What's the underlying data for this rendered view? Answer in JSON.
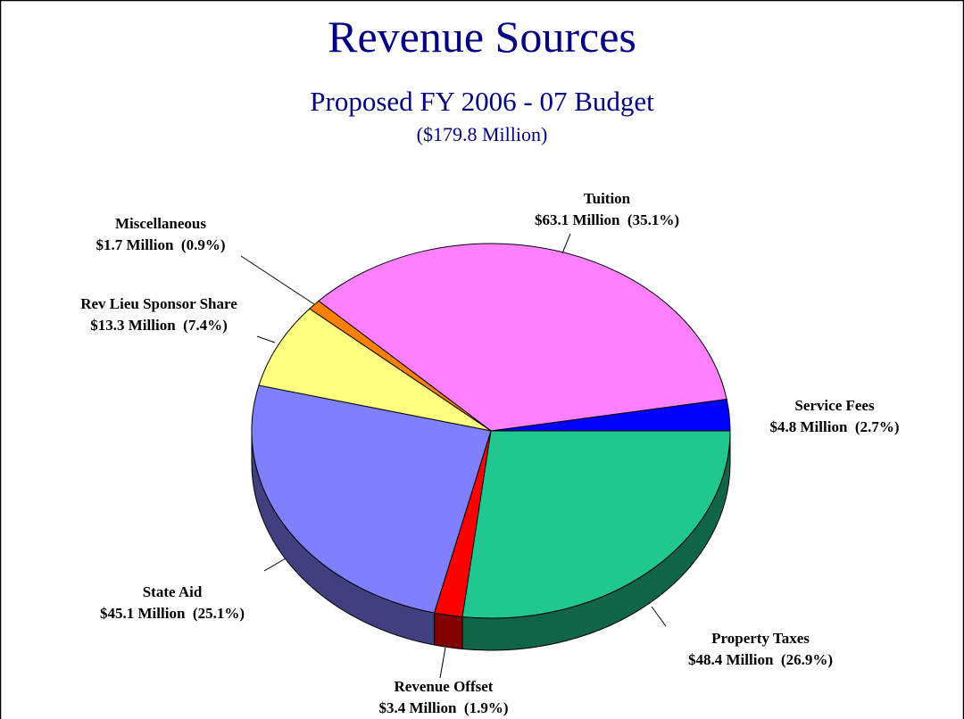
{
  "chart_data": {
    "type": "pie",
    "title": "Revenue Sources",
    "subtitle": "Proposed FY 2006 - 07 Budget",
    "total_label": "($179.8 Million)",
    "categories": [
      "Service Fees",
      "Tuition",
      "Miscellaneous",
      "Rev Lieu Sponsor Share",
      "State Aid",
      "Revenue Offset",
      "Property Taxes"
    ],
    "values": [
      2.7,
      35.1,
      0.9,
      7.4,
      25.1,
      1.9,
      26.9
    ],
    "value_labels": [
      "$4.8 Million  (2.7%)",
      "$63.1 Million  (35.1%)",
      "$1.7 Million  (0.9%)",
      "$13.3 Million  (7.4%)",
      "$45.1 Million  (25.1%)",
      "$3.4 Million  (1.9%)",
      "$48.4 Million  (26.9%)"
    ],
    "colors": [
      "#0000ff",
      "#ff80ff",
      "#ff8000",
      "#ffff80",
      "#8080ff",
      "#ff0000",
      "#20c890"
    ]
  }
}
